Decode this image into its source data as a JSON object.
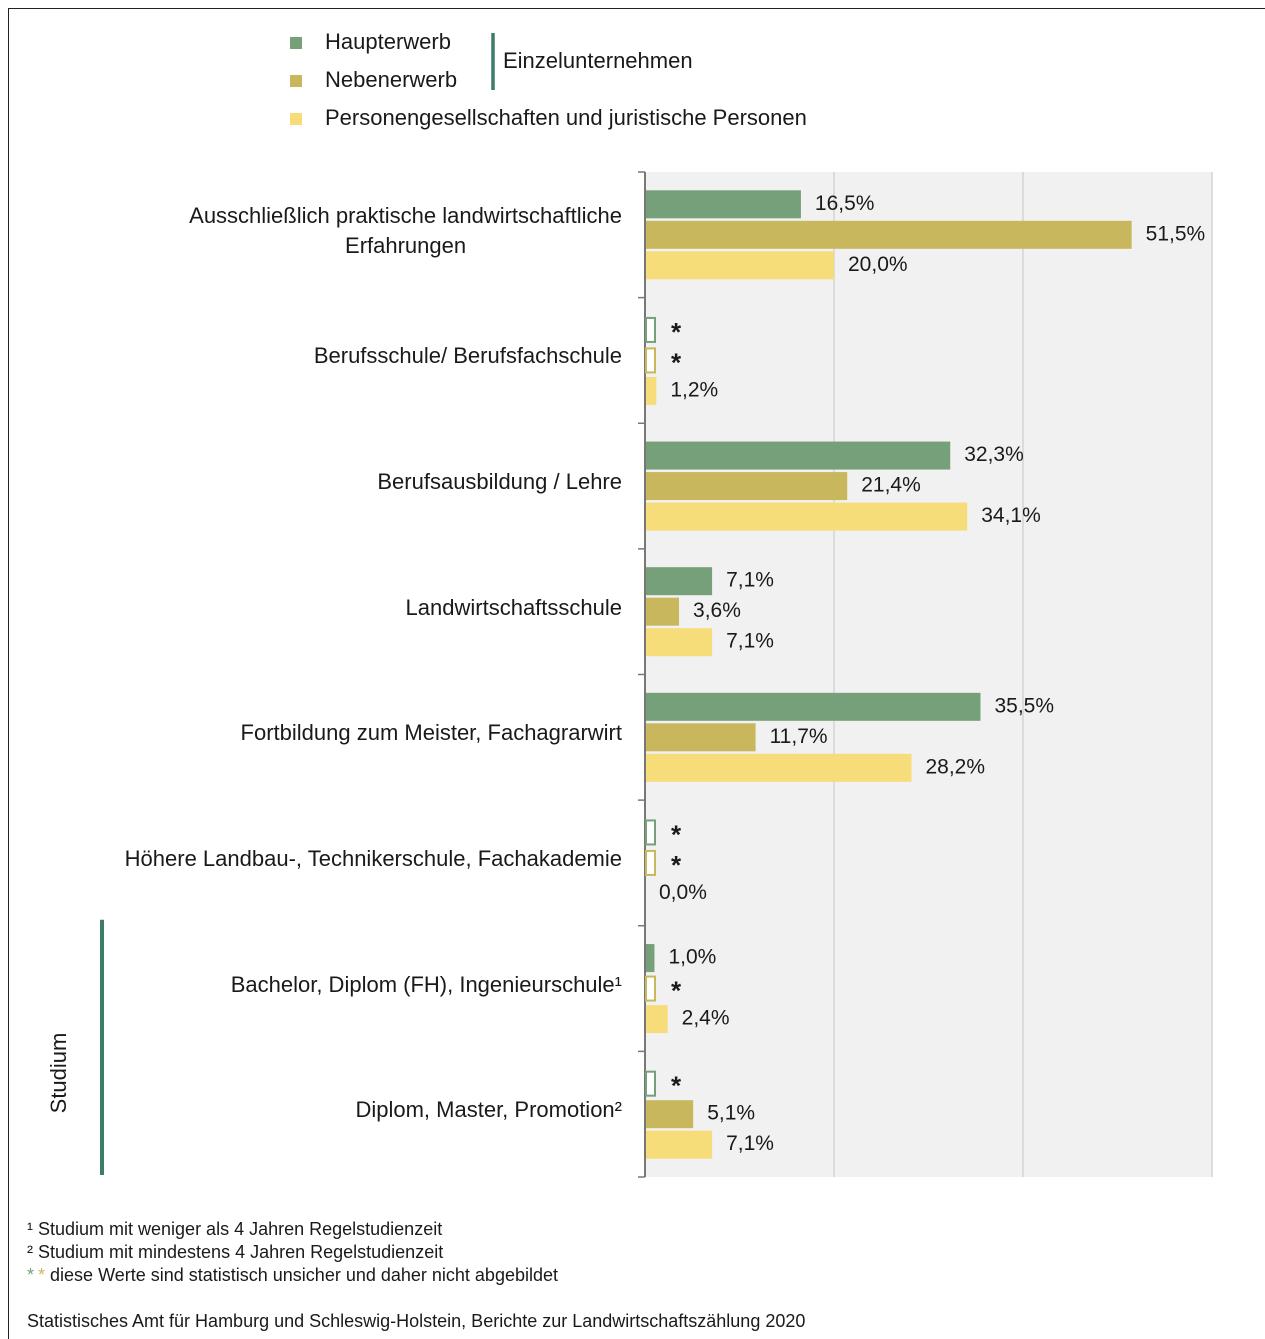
{
  "chart_data": {
    "type": "barh",
    "categories": [
      "Ausschließlich praktische landwirtschaftliche\nErfahrungen",
      "Berufsschule/ Berufsfachschule",
      "Berufsausbildung / Lehre",
      "Landwirtschaftsschule",
      "Fortbildung zum Meister, Fachagrarwirt",
      "Höhere Landbau-, Technikerschule, Fachakademie",
      "Bachelor, Diplom (FH), Ingenieurschule¹",
      "Diplom, Master, Promotion²"
    ],
    "series": [
      {
        "name": "Haupterwerb",
        "color": "#76a07a",
        "values": [
          16.5,
          null,
          32.3,
          7.1,
          35.5,
          null,
          1.0,
          null
        ],
        "value_labels": [
          "16,5%",
          "*",
          "32,3%",
          "7,1%",
          "35,5%",
          "*",
          "1,0%",
          "*"
        ]
      },
      {
        "name": "Nebenerwerb",
        "color": "#c9b75e",
        "values": [
          51.5,
          null,
          21.4,
          3.6,
          11.7,
          null,
          null,
          5.1
        ],
        "value_labels": [
          "51,5%",
          "*",
          "21,4%",
          "3,6%",
          "11,7%",
          "*",
          "*",
          "5,1%"
        ]
      },
      {
        "name": "Personengesellschaften und juristische Personen",
        "color": "#f7dc7a",
        "values": [
          20.0,
          1.2,
          34.1,
          7.1,
          28.2,
          0.0,
          2.4,
          7.1
        ],
        "value_labels": [
          "20,0%",
          "1,2%",
          "34,1%",
          "7,1%",
          "28,2%",
          "0,0%",
          "2,4%",
          "7,1%"
        ]
      }
    ],
    "legend_group": "Einzelunternehmen",
    "category_group": "Studium",
    "xlim": [
      0,
      60
    ],
    "xticks": [
      0,
      20,
      40,
      60
    ],
    "grid": true,
    "footnotes": [
      "¹ Studium mit weniger als 4 Jahren Regelstudienzeit",
      "² Studium mit mindestens 4 Jahren Regelstudienzeit"
    ],
    "uncertain_note": {
      "symbols": [
        "*",
        "*"
      ],
      "text": "diese Werte sind statistisch unsicher und daher nicht abgebildet"
    },
    "source": "Statistisches Amt für Hamburg und Schleswig-Holstein,  Berichte zur Landwirtschaftszählung  2020"
  }
}
